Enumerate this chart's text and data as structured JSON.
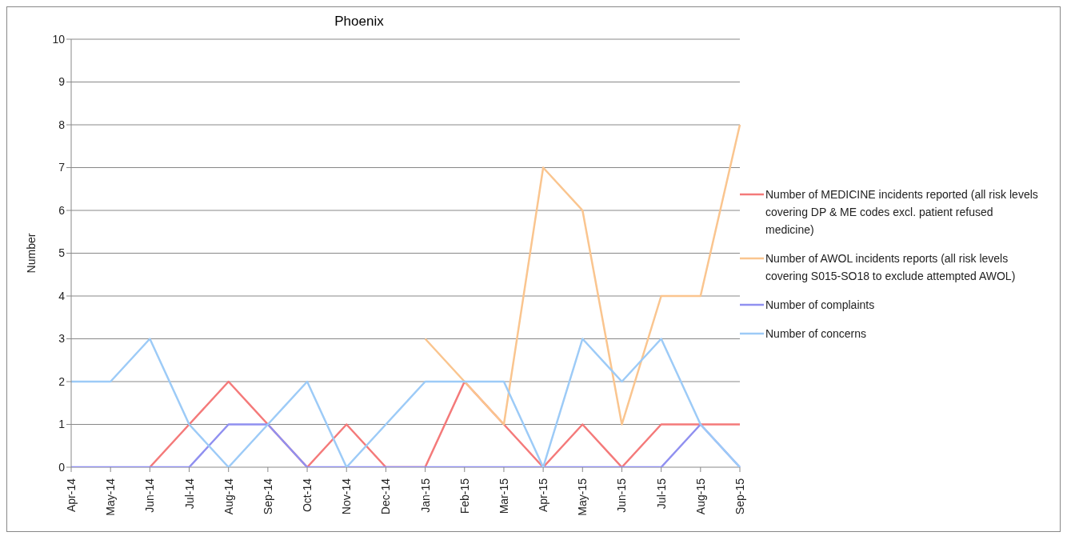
{
  "chart_data": {
    "type": "line",
    "title": "Phoenix",
    "ylabel": "Number",
    "categories": [
      "Apr-14",
      "May-14",
      "Jun-14",
      "Jul-14",
      "Aug-14",
      "Sep-14",
      "Oct-14",
      "Nov-14",
      "Dec-14",
      "Jan-15",
      "Feb-15",
      "Mar-15",
      "Apr-15",
      "May-15",
      "Jun-15",
      "Jul-15",
      "Aug-15",
      "Sep-15"
    ],
    "series": [
      {
        "name": "Number of MEDICINE incidents reported (all risk levels covering DP & ME codes excl. patient refused medicine)",
        "color": "#f47a7a",
        "values": [
          null,
          null,
          0,
          1,
          2,
          1,
          0,
          1,
          0,
          0,
          2,
          1,
          0,
          1,
          0,
          1,
          1,
          1
        ]
      },
      {
        "name": "Number of AWOL incidents reports (all risk levels covering S015-SO18 to exclude attempted AWOL)",
        "color": "#fac58f",
        "values": [
          null,
          null,
          null,
          null,
          null,
          null,
          null,
          null,
          null,
          3,
          2,
          1,
          7,
          6,
          1,
          4,
          4,
          8
        ]
      },
      {
        "name": "Number of complaints",
        "color": "#9090f0",
        "values": [
          0,
          0,
          0,
          0,
          1,
          1,
          0,
          0,
          0,
          0,
          0,
          0,
          0,
          0,
          0,
          0,
          1,
          0
        ]
      },
      {
        "name": "Number of concerns",
        "color": "#9dcbf7",
        "values": [
          2,
          2,
          3,
          1,
          0,
          1,
          2,
          0,
          1,
          2,
          2,
          2,
          0,
          3,
          2,
          3,
          1,
          0
        ]
      }
    ],
    "ylim": [
      0,
      10
    ],
    "yticks": [
      0,
      1,
      2,
      3,
      4,
      5,
      6,
      7,
      8,
      9,
      10
    ],
    "grid": "y",
    "legend": "right",
    "marker": "none",
    "line_style": "solid"
  }
}
